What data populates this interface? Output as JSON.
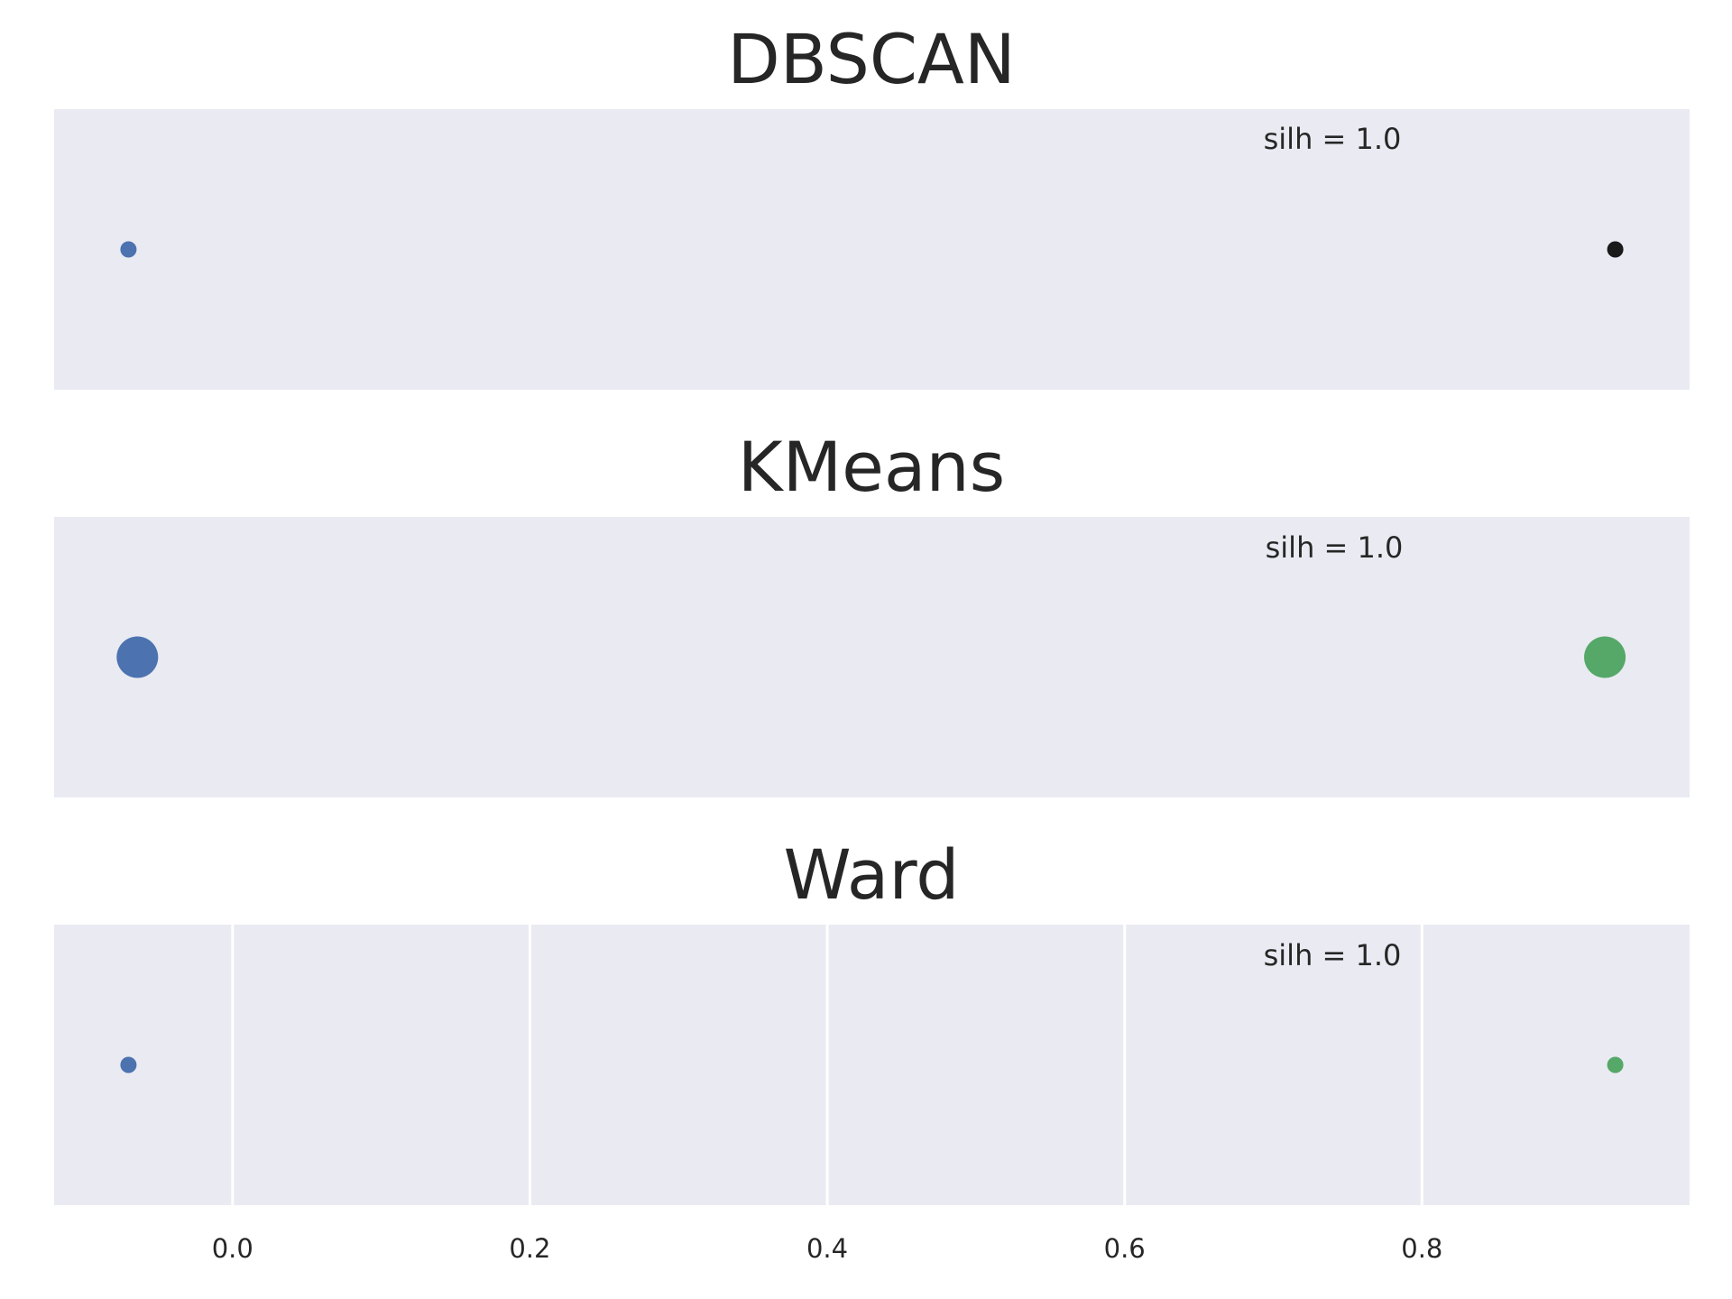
{
  "chart_data": [
    {
      "type": "scatter",
      "title": "DBSCAN",
      "annotation": "silh = 1.0",
      "grid": false,
      "xlim": [
        -0.12,
        0.98
      ],
      "points": [
        {
          "x": -0.07,
          "y": 0,
          "color": "#4c72b0",
          "size": "small"
        },
        {
          "x": 0.93,
          "y": 0,
          "color": "#1a1a1a",
          "size": "small"
        }
      ]
    },
    {
      "type": "scatter",
      "title": "KMeans",
      "annotation": "silh = 1.0",
      "grid": false,
      "xlim": [
        -0.12,
        0.98
      ],
      "points": [
        {
          "x": -0.064,
          "y": 0,
          "color": "#4c72b0",
          "size": "large"
        },
        {
          "x": 0.923,
          "y": 0,
          "color": "#55a868",
          "size": "large"
        }
      ]
    },
    {
      "type": "scatter",
      "title": "Ward",
      "annotation": "silh = 1.0",
      "grid": true,
      "xlim": [
        -0.12,
        0.98
      ],
      "x_ticks": [
        0.0,
        0.2,
        0.4,
        0.6,
        0.8
      ],
      "x_tick_labels": [
        "0.0",
        "0.2",
        "0.4",
        "0.6",
        "0.8"
      ],
      "points": [
        {
          "x": -0.07,
          "y": 0,
          "color": "#4c72b0",
          "size": "small"
        },
        {
          "x": 0.93,
          "y": 0,
          "color": "#55a868",
          "size": "small"
        }
      ]
    }
  ],
  "colors": {
    "panel_background": "#eaeaf2",
    "grid": "#ffffff",
    "text": "#262626"
  }
}
